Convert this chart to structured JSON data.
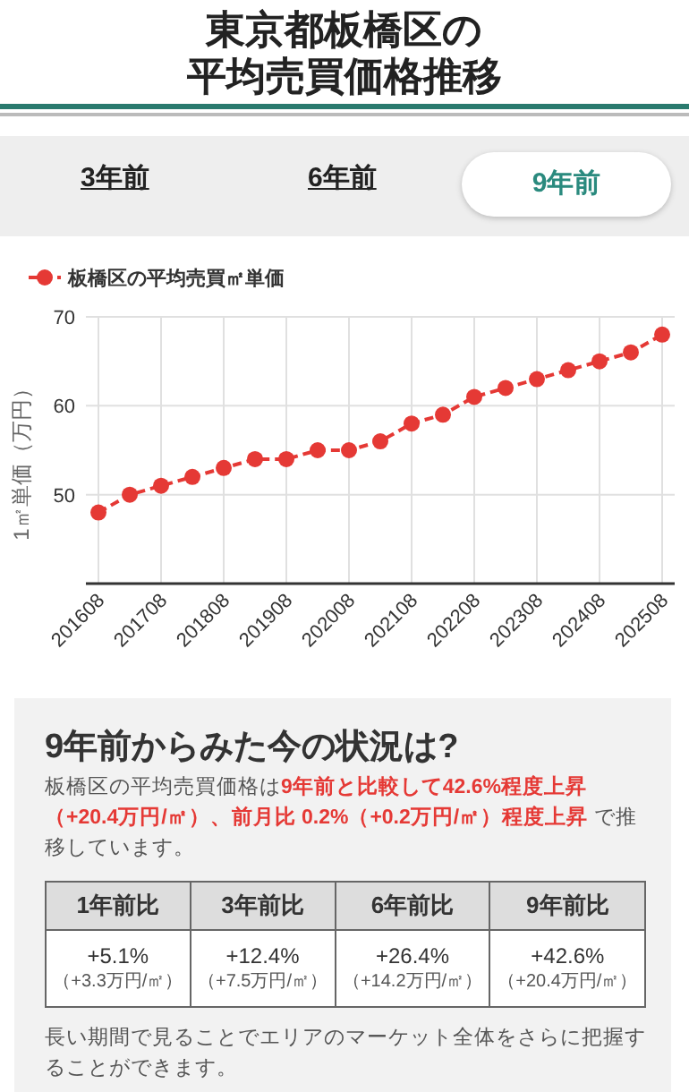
{
  "chart_data": {
    "type": "line",
    "title": "東京都板橋区の",
    "subtitle": "平均売買価格推移",
    "ylabel": "1㎡単価（万円）",
    "categories": [
      "201608",
      null,
      "201708",
      null,
      "201808",
      null,
      "201908",
      null,
      "202008",
      null,
      "202108",
      null,
      "202208",
      null,
      "202308",
      null,
      "202408",
      null,
      "202508"
    ],
    "series": [
      {
        "name": "板橋区の平均売買㎡単価",
        "color": "#e53935",
        "values": [
          48,
          50,
          51,
          52,
          53,
          54,
          54,
          55,
          55,
          56,
          58,
          59,
          61,
          62,
          63,
          64,
          65,
          66,
          68
        ]
      }
    ],
    "ylim": [
      40,
      70
    ],
    "yticks": [
      {
        "value": 40,
        "label": null
      },
      50,
      60,
      70
    ],
    "grid": true,
    "legend": "top left",
    "marker": "circle",
    "line_style": "dashed",
    "annotations": [
      "3年前",
      "6年前",
      "9年前",
      "9年前からみた今の状況は?",
      "板橋区の平均売買価格は",
      "9年前と比較して42.6%程度上昇（+20.4万円/㎡）、前月比 0.2%（+0.2万円/㎡）程度上昇",
      " で推移しています。",
      "1年前比",
      "3年前比",
      "6年前比",
      "9年前比",
      "+5.1%",
      "+12.4%",
      "+26.4%",
      "+42.6%",
      "（+3.3万円/㎡）",
      "（+7.5万円/㎡）",
      "（+14.2万円/㎡）",
      "（+20.4万円/㎡）",
      "長い期間で見ることでエリアのマーケット全体をさらに把握することができます。"
    ]
  }
}
